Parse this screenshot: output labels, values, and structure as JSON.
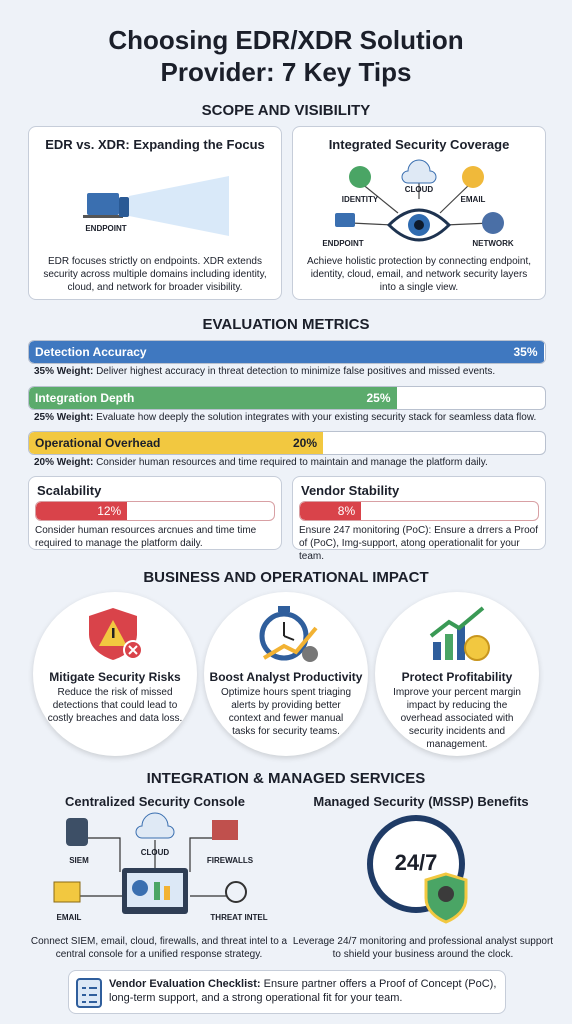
{
  "header": {
    "title": "Choosing EDR/XDR Solution Provider: 7 Key Tips"
  },
  "scope": {
    "heading": "SCOPE AND VISIBILITY",
    "edr_card": {
      "title": "EDR vs. XDR: Expanding the Focus",
      "icon_label": "ENDPOINT",
      "description": "EDR focuses strictly on endpoints. XDR extends security across multiple domains including identity, cloud, and network for broader visibility."
    },
    "coverage_card": {
      "title": "Integrated Security Coverage",
      "labels": [
        "IDENTITY",
        "CLOUD",
        "EMAIL",
        "ENDPOINT",
        "NETWORK"
      ],
      "description": "Achieve holistic protection by connecting endpoint, identity, cloud, email, and network security layers into a single view."
    }
  },
  "metrics": {
    "heading": "EVALUATION METRICS",
    "items": [
      {
        "name": "Detection Accuracy",
        "value": 35,
        "value_label": "35%",
        "weight_label": "35% Weight:",
        "description": "Deliver highest accuracy in threat detection to minimize false positives and missed events.",
        "color": "#3f78c0"
      },
      {
        "name": "Integration Depth",
        "value": 25,
        "value_label": "25%",
        "weight_label": "25% Weight:",
        "description": "Evaluate how deeply the solution integrates with your existing security stack for seamless data flow.",
        "color": "#5bab6c"
      },
      {
        "name": "Operational Overhead",
        "value": 20,
        "value_label": "20%",
        "weight_label": "20% Weight:",
        "description": "Consider human resources and time required to maintain and manage the platform daily.",
        "color": "#f2c840"
      },
      {
        "name": "Scalability",
        "value": 12,
        "value_label": "12%",
        "description": "Consider human resources arcnues and time time required to manage the platform daily.",
        "color": "#d9434a"
      },
      {
        "name": "Vendor Stability",
        "value": 8,
        "value_label": "8%",
        "description": "Ensure 247 monitoring (PoC): Ensure a drrers a Proof of (PoC), Img-support, atong operationalit for your team.",
        "color": "#d9434a"
      }
    ]
  },
  "impact": {
    "heading": "BUSINESS AND OPERATIONAL IMPACT",
    "items": [
      {
        "title": "Mitigate Security Risks",
        "description": "Reduce the risk of missed detections that could lead to costly breaches and data loss."
      },
      {
        "title": "Boost Analyst Productivity",
        "description": "Optimize hours spent triaging alerts by providing better context and fewer manual tasks for security teams."
      },
      {
        "title": "Protect Profitability",
        "description": "Improve your percent margin impact by reducing the overhead associated with security incidents and management."
      }
    ]
  },
  "integration": {
    "heading": "INTEGRATION & MANAGED SERVICES",
    "console": {
      "title": "Centralized Security Console",
      "labels": [
        "SIEM",
        "CLOUD",
        "FIREWALLS",
        "EMAIL",
        "THREAT INTEL"
      ],
      "description": "Connect SIEM, email, cloud, firewalls, and threat intel to a central console for a unified response strategy."
    },
    "mssp": {
      "title": "Managed Security (MSSP) Benefits",
      "clock_label": "24/7",
      "description": "Leverage 24/7 monitoring and professional analyst support to shield your business around the clock."
    }
  },
  "checklist": {
    "label": "Vendor Evaluation Checklist:",
    "text": "Ensure partner offers a Proof of Concept (PoC), long-term support, and a strong operational fit for your team."
  }
}
